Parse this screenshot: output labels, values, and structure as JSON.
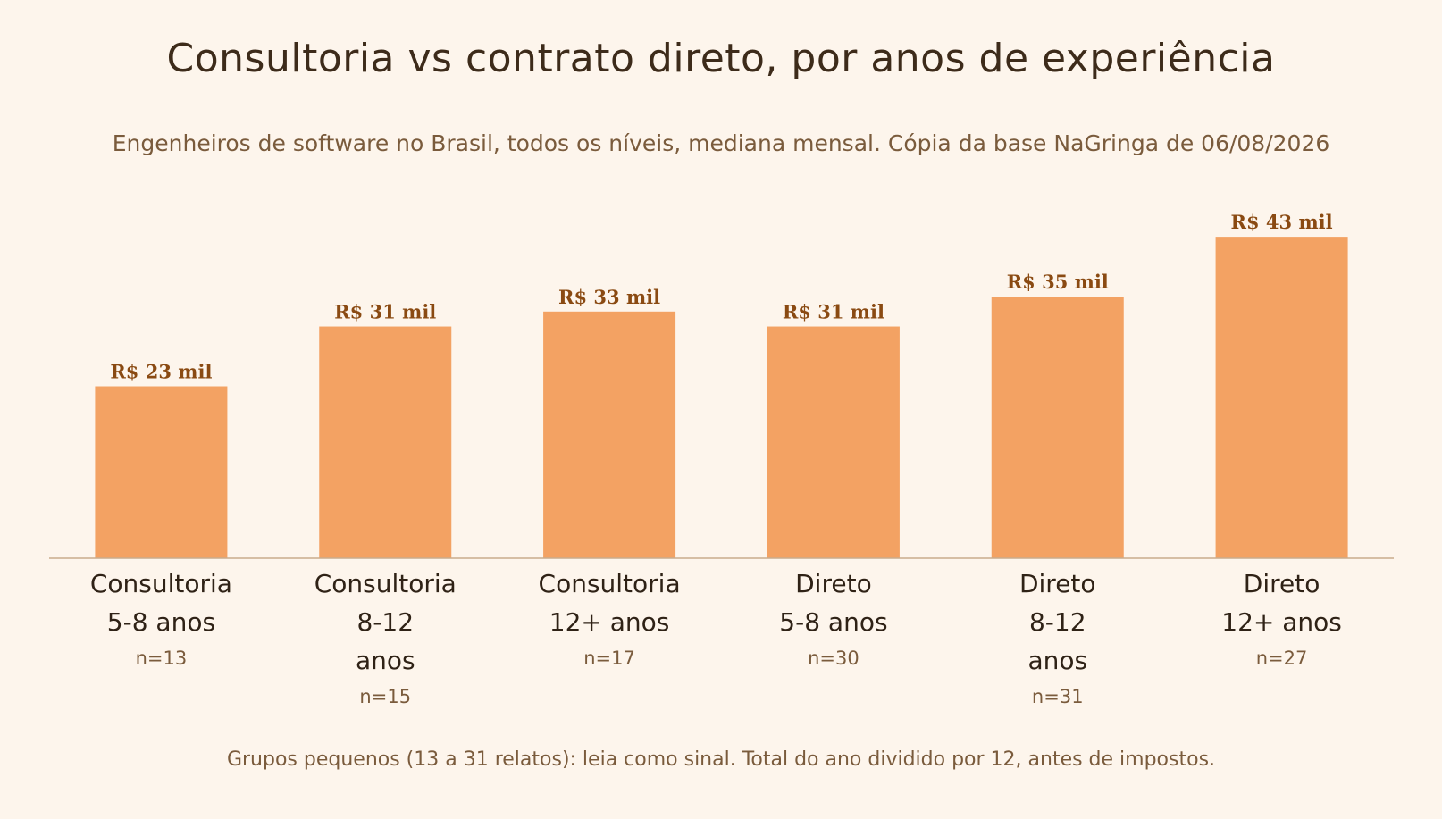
{
  "chart_data": {
    "type": "bar",
    "title": "Consultoria vs contrato direto, por anos de experiência",
    "subtitle": "Engenheiros de software no Brasil, todos os níveis, mediana mensal. Cópia da base NaGringa de 06/08/2026",
    "footnote": "Grupos pequenos (13 a 31 relatos): leia como sinal. Total do ano dividido por 12, antes de impostos.",
    "categories": [
      [
        "Consultoria",
        "5-8 anos"
      ],
      [
        "Consultoria",
        "8-12",
        "anos"
      ],
      [
        "Consultoria",
        "12+ anos"
      ],
      [
        "Direto",
        "5-8 anos"
      ],
      [
        "Direto",
        "8-12",
        "anos"
      ],
      [
        "Direto",
        "12+ anos"
      ]
    ],
    "values": [
      23,
      31,
      33,
      31,
      35,
      43
    ],
    "value_labels": [
      "R$ 23 mil",
      "R$ 31 mil",
      "R$ 33 mil",
      "R$ 31 mil",
      "R$ 35 mil",
      "R$ 43 mil"
    ],
    "sample_sizes": [
      "n=13",
      "n=15",
      "n=17",
      "n=30",
      "n=31",
      "n=27"
    ],
    "ylim": [
      0,
      46
    ],
    "grid": false,
    "legend": "none",
    "colors": {
      "bar": "#f3a263",
      "axis": "#c9ab8c",
      "background": "#fdf5ec"
    }
  }
}
